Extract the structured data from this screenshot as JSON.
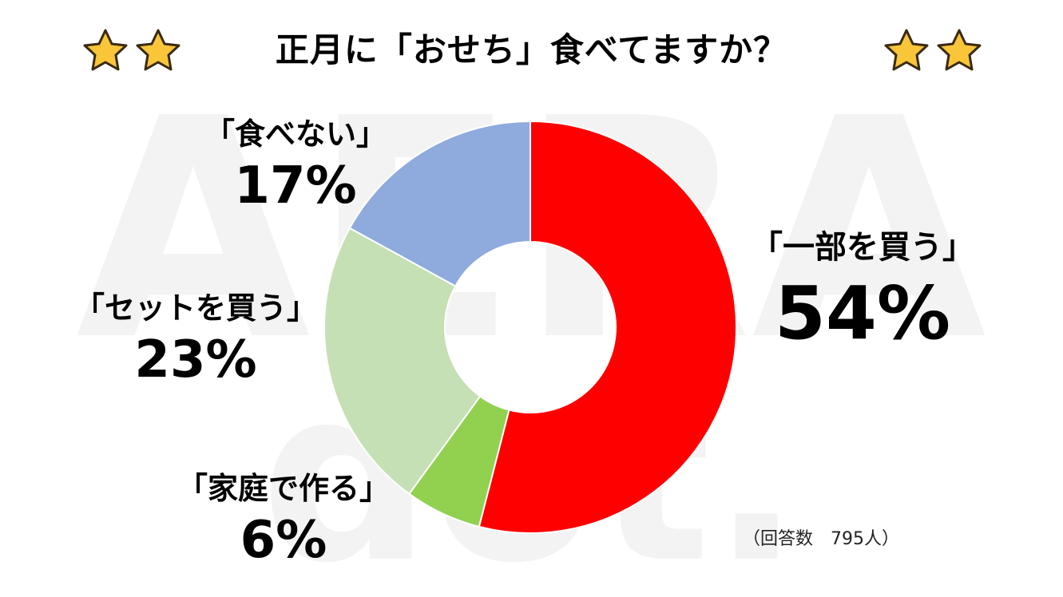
{
  "title": "正月に「おせち」食べてますか？",
  "decoration": {
    "star_icon": "star-icon",
    "star_fill": "#F9C63A",
    "star_stroke": "#3A2A10"
  },
  "watermark": {
    "text_line1": "AERA",
    "text_line2": "dot.",
    "color": "#F3F3F3"
  },
  "chart_data": {
    "type": "pie",
    "style": "donut",
    "start_angle_deg": 0,
    "direction": "clockwise",
    "categories": [
      "「一部を買う」",
      "「家庭で作る」",
      "「セットを買う」",
      "「食べない」"
    ],
    "values": [
      54,
      6,
      23,
      17
    ],
    "labels": [
      "54%",
      "6%",
      "23%",
      "17%"
    ],
    "colors": [
      "#FF0000",
      "#92D050",
      "#C5E0B4",
      "#8FAADC"
    ],
    "title": "正月に「おせち」食べてますか？",
    "note": "（回答数　795人）",
    "legend": "none"
  }
}
